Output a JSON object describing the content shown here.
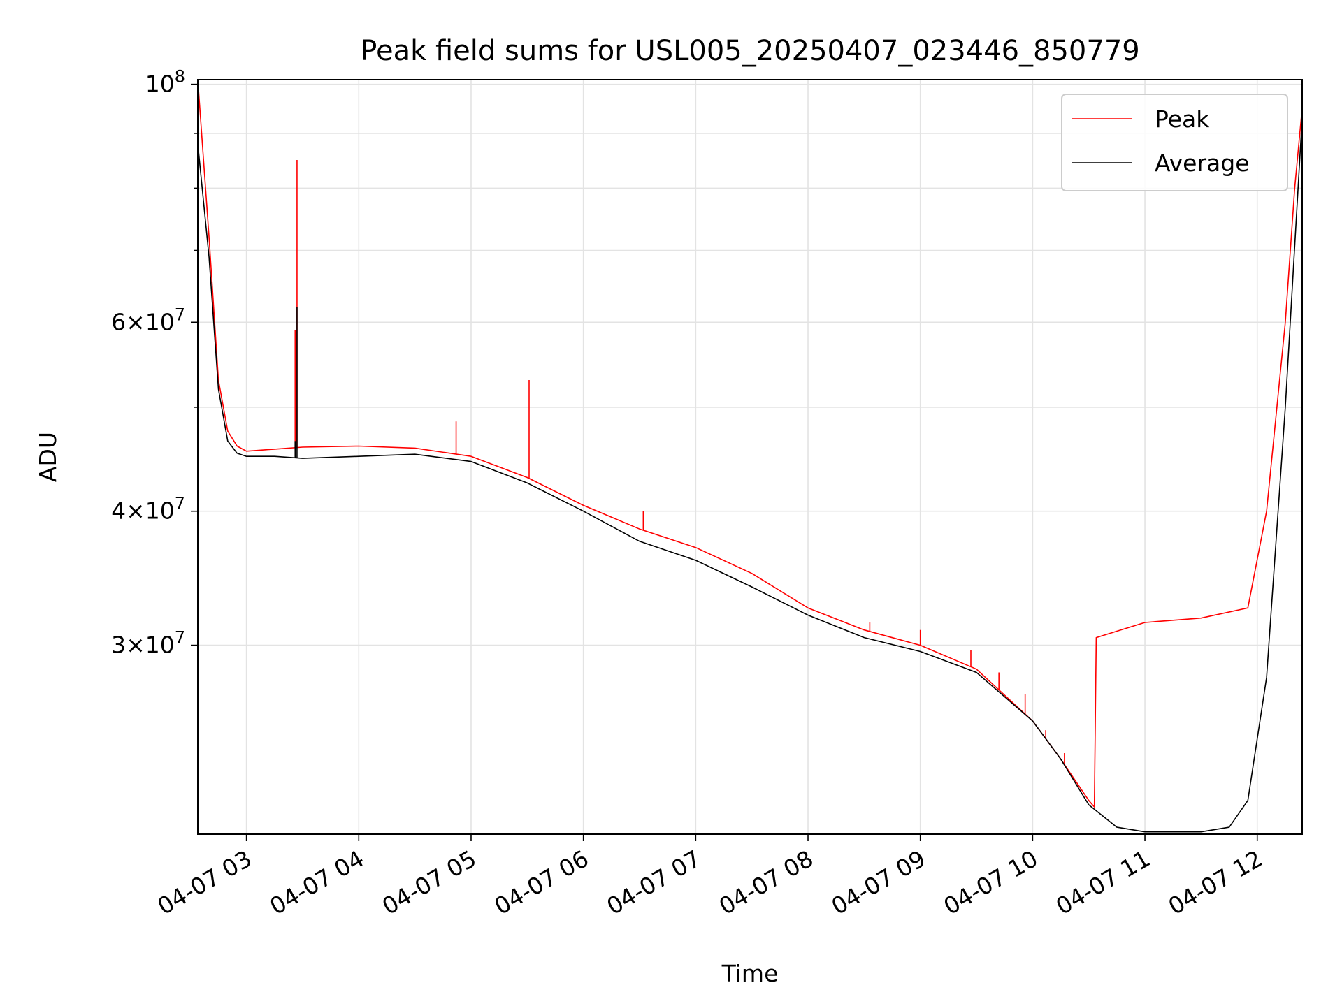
{
  "chart_data": {
    "type": "line",
    "title": "Peak field sums for USL005_20250407_023446_850779",
    "xlabel": "Time",
    "ylabel": "ADU",
    "y_scale": "log",
    "xlim": [
      "2025-04-07 02:34",
      "2025-04-07 12:24"
    ],
    "ylim": [
      20000000,
      101000000
    ],
    "x_ticks": [
      {
        "x": "2025-04-07 03:00",
        "label": "04-07 03"
      },
      {
        "x": "2025-04-07 04:00",
        "label": "04-07 04"
      },
      {
        "x": "2025-04-07 05:00",
        "label": "04-07 05"
      },
      {
        "x": "2025-04-07 06:00",
        "label": "04-07 06"
      },
      {
        "x": "2025-04-07 07:00",
        "label": "04-07 07"
      },
      {
        "x": "2025-04-07 08:00",
        "label": "04-07 08"
      },
      {
        "x": "2025-04-07 09:00",
        "label": "04-07 09"
      },
      {
        "x": "2025-04-07 10:00",
        "label": "04-07 10"
      },
      {
        "x": "2025-04-07 11:00",
        "label": "04-07 11"
      },
      {
        "x": "2025-04-07 12:00",
        "label": "04-07 12"
      }
    ],
    "y_major_ticks": [
      {
        "value": 30000000,
        "base": "3",
        "exp": "7"
      },
      {
        "value": 40000000,
        "base": "4",
        "exp": "7"
      },
      {
        "value": 60000000,
        "base": "6",
        "exp": "7"
      },
      {
        "value": 100000000,
        "base": "10",
        "exp": "8",
        "pure_power": true
      }
    ],
    "y_minor_ticks": [
      50000000,
      70000000,
      80000000,
      90000000
    ],
    "grid": true,
    "legend_position": "top-right",
    "series": [
      {
        "name": "Peak",
        "color": "#ff0000",
        "x": [
          "2025-04-07 02:34",
          "2025-04-07 02:40",
          "2025-04-07 02:45",
          "2025-04-07 02:50",
          "2025-04-07 02:55",
          "2025-04-07 03:00",
          "2025-04-07 03:15",
          "2025-04-07 03:30",
          "2025-04-07 04:00",
          "2025-04-07 04:30",
          "2025-04-07 05:00",
          "2025-04-07 05:30",
          "2025-04-07 06:00",
          "2025-04-07 06:30",
          "2025-04-07 07:00",
          "2025-04-07 07:30",
          "2025-04-07 08:00",
          "2025-04-07 08:30",
          "2025-04-07 09:00",
          "2025-04-07 09:30",
          "2025-04-07 10:00",
          "2025-04-07 10:15",
          "2025-04-07 10:30",
          "2025-04-07 10:33",
          "2025-04-07 10:34",
          "2025-04-07 11:00",
          "2025-04-07 11:30",
          "2025-04-07 11:55",
          "2025-04-07 12:05",
          "2025-04-07 12:15",
          "2025-04-07 12:20",
          "2025-04-07 12:24"
        ],
        "y": [
          101000000,
          72000000,
          53000000,
          47500000,
          46000000,
          45500000,
          45700000,
          45900000,
          46000000,
          45800000,
          45000000,
          43000000,
          40500000,
          38500000,
          37000000,
          35000000,
          32500000,
          31000000,
          30000000,
          28500000,
          25500000,
          23500000,
          21500000,
          21200000,
          30500000,
          31500000,
          31800000,
          32500000,
          40000000,
          60000000,
          80000000,
          95000000
        ],
        "spikes": [
          {
            "x": "2025-04-07 03:27",
            "y": 85000000
          },
          {
            "x": "2025-04-07 03:26",
            "y": 59000000
          },
          {
            "x": "2025-04-07 04:52",
            "y": 48500000
          },
          {
            "x": "2025-04-07 05:31",
            "y": 53000000
          },
          {
            "x": "2025-04-07 06:32",
            "y": 40000000
          },
          {
            "x": "2025-04-07 08:33",
            "y": 31500000
          },
          {
            "x": "2025-04-07 09:00",
            "y": 31000000
          },
          {
            "x": "2025-04-07 09:27",
            "y": 29700000
          },
          {
            "x": "2025-04-07 09:42",
            "y": 28300000
          },
          {
            "x": "2025-04-07 09:56",
            "y": 27000000
          },
          {
            "x": "2025-04-07 10:07",
            "y": 25000000
          },
          {
            "x": "2025-04-07 10:17",
            "y": 23800000
          }
        ]
      },
      {
        "name": "Average",
        "color": "#000000",
        "x": [
          "2025-04-07 02:34",
          "2025-04-07 02:40",
          "2025-04-07 02:45",
          "2025-04-07 02:50",
          "2025-04-07 02:55",
          "2025-04-07 03:00",
          "2025-04-07 03:15",
          "2025-04-07 03:30",
          "2025-04-07 04:00",
          "2025-04-07 04:30",
          "2025-04-07 05:00",
          "2025-04-07 05:30",
          "2025-04-07 06:00",
          "2025-04-07 06:30",
          "2025-04-07 07:00",
          "2025-04-07 07:30",
          "2025-04-07 08:00",
          "2025-04-07 08:30",
          "2025-04-07 09:00",
          "2025-04-07 09:30",
          "2025-04-07 10:00",
          "2025-04-07 10:15",
          "2025-04-07 10:30",
          "2025-04-07 10:45",
          "2025-04-07 11:00",
          "2025-04-07 11:30",
          "2025-04-07 11:45",
          "2025-04-07 11:55",
          "2025-04-07 12:05",
          "2025-04-07 12:15",
          "2025-04-07 12:24"
        ],
        "y": [
          88000000,
          69000000,
          52000000,
          46500000,
          45300000,
          45000000,
          45000000,
          44800000,
          45000000,
          45200000,
          44500000,
          42500000,
          40000000,
          37500000,
          36000000,
          34000000,
          32000000,
          30500000,
          29600000,
          28300000,
          25500000,
          23500000,
          21300000,
          20300000,
          20100000,
          20100000,
          20300000,
          21500000,
          28000000,
          50000000,
          93000000
        ],
        "spikes": [
          {
            "x": "2025-04-07 03:27",
            "y": 62000000
          },
          {
            "x": "2025-04-07 03:26",
            "y": 46500000
          }
        ]
      }
    ]
  }
}
